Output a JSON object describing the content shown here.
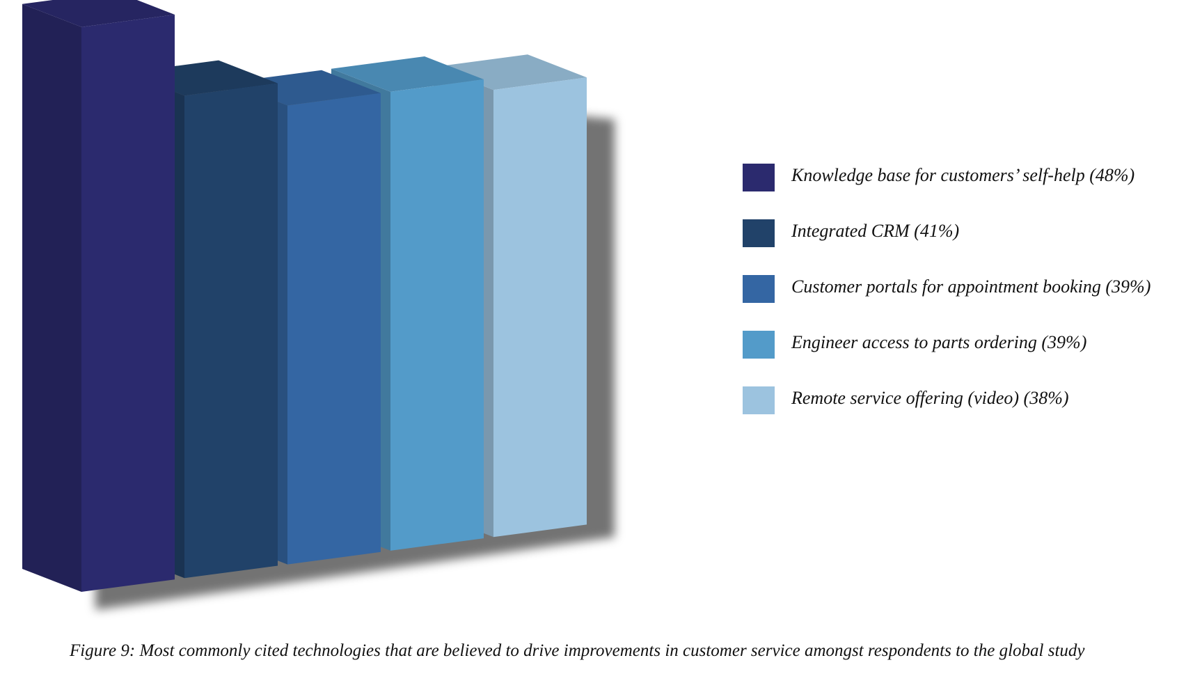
{
  "chart_data": {
    "type": "bar",
    "categories": [
      "Knowledge base for customers’ self-help",
      "Integrated CRM",
      "Customer portals for appointment booking",
      "Engineer access to parts ordering",
      "Remote service offering (video)"
    ],
    "values": [
      48,
      41,
      39,
      39,
      38
    ],
    "unit": "%",
    "colors": [
      "#2b2a6e",
      "#214269",
      "#3466a3",
      "#539bc9",
      "#9cc3df"
    ],
    "legend_placement": "right",
    "grid": false,
    "style": "3d"
  },
  "legend": {
    "items": [
      {
        "label": "Knowledge base for customers’ self-help (48%)",
        "color": "#2b2a6e"
      },
      {
        "label": "Integrated CRM (41%)",
        "color": "#214269"
      },
      {
        "label": "Customer portals for appointment booking (39%)",
        "color": "#3466a3"
      },
      {
        "label": "Engineer access to parts ordering (39%)",
        "color": "#539bc9"
      },
      {
        "label": "Remote service offering (video) (38%)",
        "color": "#9cc3df"
      }
    ]
  },
  "caption": "Figure 9: Most commonly cited technologies that are believed to drive improvements in customer service amongst respondents to the global study"
}
